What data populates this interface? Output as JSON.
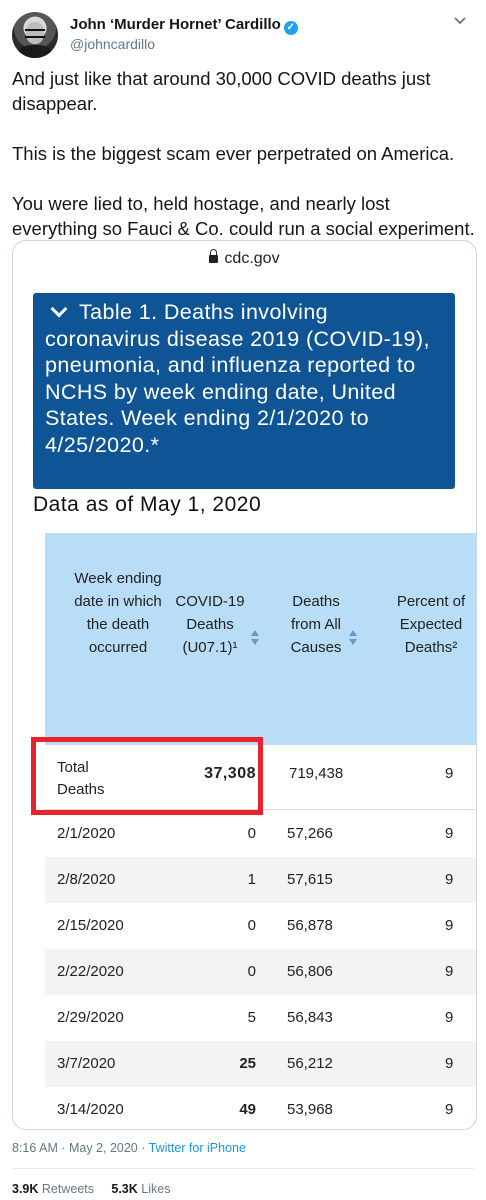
{
  "author": {
    "name": "John ‘Murder Hornet’ Cardillo",
    "handle": "@johncardillo"
  },
  "tweet_text": "And just like that around 30,000 COVID deaths just disappear.\n\nThis is the biggest scam ever perpetrated on America.\n\nYou were lied to, held hostage, and nearly lost everything so Fauci & Co. could run a social experiment.",
  "card": {
    "url": "cdc.gov",
    "table_title": "Table 1. Deaths involving coronavirus disease 2019 (COVID-19), pneumonia, and influenza reported to NCHS by week ending date, United States. Week ending 2/1/2020 to 4/25/2020.*",
    "data_as_of": "Data as of May 1, 2020",
    "headers": {
      "week": "Week ending date in which the death occurred",
      "covid": "COVID-19 Deaths (U07.1)¹",
      "all": "Deaths from All Causes",
      "pct": "Percent of Expected Deaths²"
    },
    "total": {
      "label": "Total Deaths",
      "covid": "37,308",
      "all": "719,438",
      "pct": "9"
    },
    "rows": [
      {
        "week": "2/1/2020",
        "covid": "0",
        "all": "57,266",
        "pct": "9"
      },
      {
        "week": "2/8/2020",
        "covid": "1",
        "all": "57,615",
        "pct": "9"
      },
      {
        "week": "2/15/2020",
        "covid": "0",
        "all": "56,878",
        "pct": "9"
      },
      {
        "week": "2/22/2020",
        "covid": "0",
        "all": "56,806",
        "pct": "9"
      },
      {
        "week": "2/29/2020",
        "covid": "5",
        "all": "56,843",
        "pct": "9"
      },
      {
        "week": "3/7/2020",
        "covid": "25",
        "all": "56,212",
        "pct": "9"
      },
      {
        "week": "3/14/2020",
        "covid": "49",
        "all": "53,968",
        "pct": "9"
      }
    ]
  },
  "meta": {
    "time": "8:16 AM · May 2, 2020 · ",
    "source": "Twitter for iPhone"
  },
  "stats": {
    "retweets_count": "3.9K",
    "retweets_label": "Retweets",
    "likes_count": "5.3K",
    "likes_label": "Likes"
  },
  "colors": {
    "table_title_bg": "#0f5596",
    "table_header_bg": "#b9dcf7",
    "highlight": "#e8232f",
    "link": "#1b95e0"
  },
  "icons": [
    "verified-badge-icon",
    "chevron-down-icon",
    "lock-icon",
    "caret-down-icon",
    "sort-icon"
  ]
}
